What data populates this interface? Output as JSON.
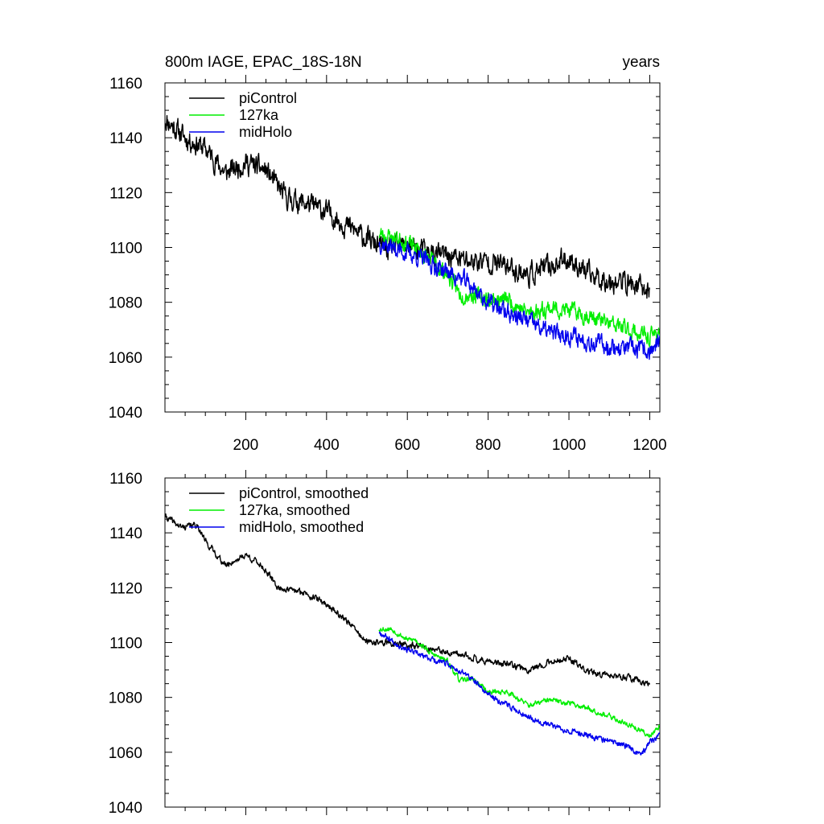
{
  "colors": {
    "piControl": "#000000",
    "127ka": "#00ee00",
    "midHolo": "#0000ee"
  },
  "chart_data": [
    {
      "type": "line",
      "title_left": "800m IAGE, EPAC_18S-18N",
      "title_right": "years",
      "xlabel": "",
      "ylabel": "",
      "xlim": [
        0,
        1225
      ],
      "ylim": [
        1040,
        1160
      ],
      "x_ticks": [
        200,
        400,
        600,
        800,
        1000,
        1200
      ],
      "x_tick_labels": [
        "200",
        "400",
        "600",
        "800",
        "1000",
        "1200"
      ],
      "y_ticks": [
        1040,
        1060,
        1080,
        1100,
        1120,
        1140,
        1160
      ],
      "y_tick_labels": [
        "1040",
        "1060",
        "1080",
        "1100",
        "1120",
        "1140",
        "1160"
      ],
      "legend_position": "top-left",
      "series": [
        {
          "name": "piControl",
          "color": "piControl",
          "noise": 4.5,
          "seed": 11,
          "points": [
            [
              0,
              1147
            ],
            [
              50,
              1140
            ],
            [
              100,
              1136
            ],
            [
              150,
              1127
            ],
            [
              200,
              1131
            ],
            [
              250,
              1128
            ],
            [
              300,
              1118
            ],
            [
              350,
              1116
            ],
            [
              400,
              1113
            ],
            [
              450,
              1108
            ],
            [
              500,
              1103
            ],
            [
              550,
              1099
            ],
            [
              600,
              1101
            ],
            [
              650,
              1098
            ],
            [
              700,
              1097
            ],
            [
              750,
              1095
            ],
            [
              800,
              1095
            ],
            [
              850,
              1093
            ],
            [
              900,
              1090
            ],
            [
              950,
              1093
            ],
            [
              1000,
              1096
            ],
            [
              1050,
              1090
            ],
            [
              1100,
              1088
            ],
            [
              1150,
              1087
            ],
            [
              1200,
              1084
            ]
          ]
        },
        {
          "name": "127ka",
          "color": "127ka",
          "noise": 3.5,
          "seed": 23,
          "points": [
            [
              530,
              1105
            ],
            [
              580,
              1103
            ],
            [
              620,
              1100
            ],
            [
              660,
              1095
            ],
            [
              700,
              1090
            ],
            [
              730,
              1083
            ],
            [
              760,
              1083
            ],
            [
              800,
              1081
            ],
            [
              850,
              1081
            ],
            [
              900,
              1076
            ],
            [
              950,
              1078
            ],
            [
              1000,
              1077
            ],
            [
              1050,
              1075
            ],
            [
              1100,
              1072
            ],
            [
              1150,
              1070
            ],
            [
              1200,
              1067
            ],
            [
              1225,
              1070
            ]
          ]
        },
        {
          "name": "midHolo",
          "color": "midHolo",
          "noise": 3.8,
          "seed": 37,
          "points": [
            [
              530,
              1102
            ],
            [
              580,
              1099
            ],
            [
              620,
              1097
            ],
            [
              660,
              1094
            ],
            [
              700,
              1091
            ],
            [
              750,
              1087
            ],
            [
              800,
              1080
            ],
            [
              850,
              1076
            ],
            [
              900,
              1073
            ],
            [
              950,
              1069
            ],
            [
              1000,
              1068
            ],
            [
              1050,
              1066
            ],
            [
              1100,
              1064
            ],
            [
              1150,
              1063
            ],
            [
              1200,
              1062
            ],
            [
              1225,
              1065
            ]
          ]
        }
      ]
    },
    {
      "type": "line",
      "title_left": "",
      "title_right": "",
      "xlabel": "",
      "ylabel": "",
      "xlim": [
        0,
        1225
      ],
      "ylim": [
        1040,
        1160
      ],
      "x_ticks": [
        200,
        400,
        600,
        800,
        1000,
        1200
      ],
      "x_tick_labels": [],
      "y_ticks": [
        1040,
        1060,
        1080,
        1100,
        1120,
        1140,
        1160
      ],
      "y_tick_labels": [
        "1040",
        "1060",
        "1080",
        "1100",
        "1120",
        "1140",
        "1160"
      ],
      "legend_position": "top-left",
      "series": [
        {
          "name": "piControl, smoothed",
          "color": "piControl",
          "noise": 1.3,
          "seed": 41,
          "points": [
            [
              0,
              1146
            ],
            [
              40,
              1142
            ],
            [
              80,
              1143
            ],
            [
              100,
              1137
            ],
            [
              150,
              1128
            ],
            [
              200,
              1132
            ],
            [
              240,
              1128
            ],
            [
              280,
              1120
            ],
            [
              350,
              1118
            ],
            [
              400,
              1114
            ],
            [
              450,
              1108
            ],
            [
              500,
              1100
            ],
            [
              550,
              1100
            ],
            [
              600,
              1099
            ],
            [
              650,
              1098
            ],
            [
              700,
              1096
            ],
            [
              750,
              1095
            ],
            [
              800,
              1093
            ],
            [
              850,
              1092
            ],
            [
              900,
              1090
            ],
            [
              950,
              1093
            ],
            [
              1000,
              1094
            ],
            [
              1050,
              1089
            ],
            [
              1100,
              1088
            ],
            [
              1150,
              1087
            ],
            [
              1200,
              1085
            ]
          ]
        },
        {
          "name": "127ka, smoothed",
          "color": "127ka",
          "noise": 1.1,
          "seed": 53,
          "points": [
            [
              530,
              1105
            ],
            [
              560,
              1105
            ],
            [
              600,
              1101
            ],
            [
              620,
              1101
            ],
            [
              660,
              1096
            ],
            [
              700,
              1093
            ],
            [
              730,
              1086
            ],
            [
              760,
              1087
            ],
            [
              800,
              1082
            ],
            [
              850,
              1082
            ],
            [
              900,
              1077
            ],
            [
              950,
              1079
            ],
            [
              1000,
              1078
            ],
            [
              1050,
              1076
            ],
            [
              1100,
              1073
            ],
            [
              1150,
              1070
            ],
            [
              1200,
              1066
            ],
            [
              1225,
              1070
            ]
          ]
        },
        {
          "name": "midHolo, smoothed",
          "color": "midHolo",
          "noise": 1.2,
          "seed": 67,
          "points": [
            [
              530,
              1104
            ],
            [
              580,
              1099
            ],
            [
              620,
              1096
            ],
            [
              660,
              1094
            ],
            [
              700,
              1092
            ],
            [
              750,
              1088
            ],
            [
              800,
              1081
            ],
            [
              850,
              1077
            ],
            [
              900,
              1073
            ],
            [
              950,
              1070
            ],
            [
              1000,
              1068
            ],
            [
              1050,
              1066
            ],
            [
              1100,
              1064
            ],
            [
              1150,
              1062
            ],
            [
              1180,
              1059
            ],
            [
              1200,
              1064
            ],
            [
              1225,
              1066
            ]
          ]
        }
      ]
    }
  ]
}
